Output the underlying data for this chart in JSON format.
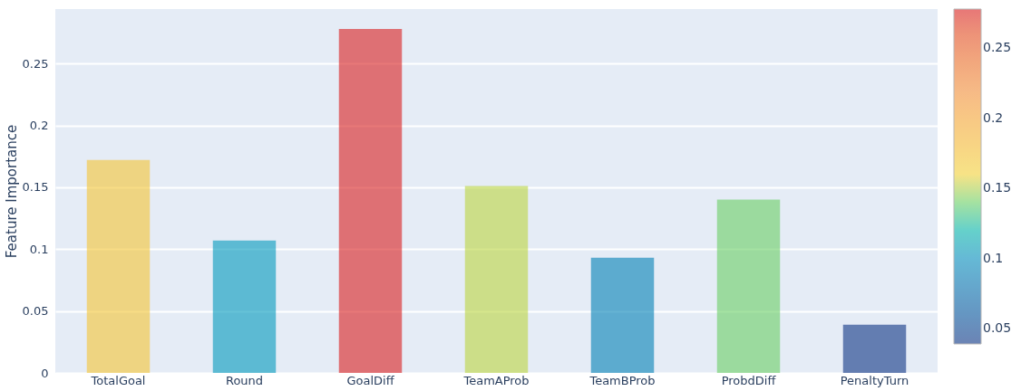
{
  "chart_data": {
    "type": "bar",
    "ylabel": "Feature Importance",
    "categories": [
      "TotalGoal",
      "Round",
      "GoalDiff",
      "TeamAProb",
      "TeamBProb",
      "ProbdDiff",
      "PenaltyTurn"
    ],
    "values": [
      0.172,
      0.107,
      0.278,
      0.151,
      0.093,
      0.14,
      0.039
    ],
    "ylim": [
      0,
      0.294
    ],
    "yticks": [
      0,
      0.05,
      0.1,
      0.15,
      0.2,
      0.25
    ],
    "clim": [
      0.039,
      0.278
    ],
    "cticks": [
      0.05,
      0.1,
      0.15,
      0.2,
      0.25
    ],
    "grid": "y"
  }
}
